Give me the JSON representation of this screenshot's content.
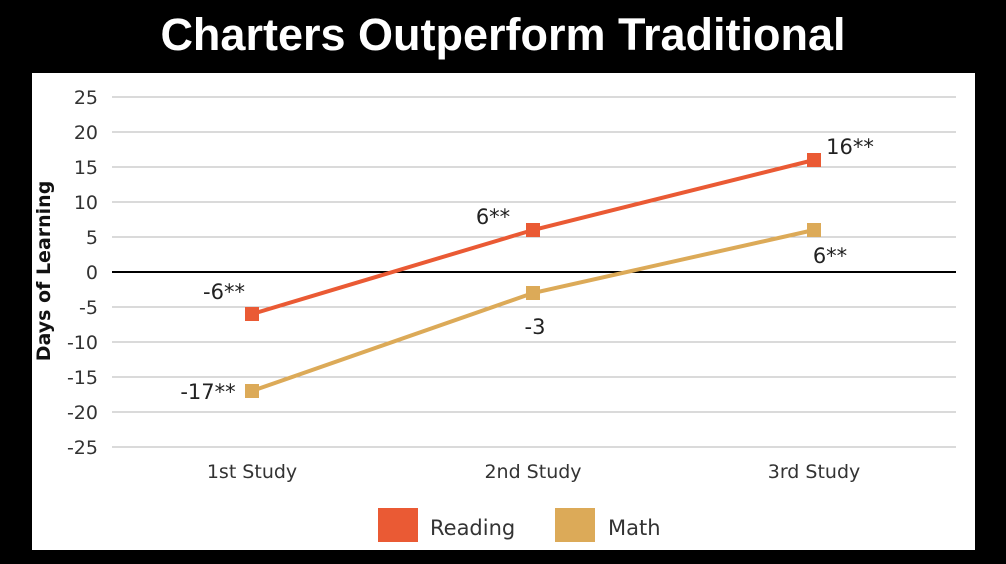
{
  "title": "Charters Outperform Traditional",
  "colors": {
    "Reading": "#ea5a34",
    "Math": "#dcaa58",
    "background": "#000000",
    "panel": "#ffffff"
  },
  "chart_data": {
    "type": "line",
    "categories": [
      "1st Study",
      "2nd Study",
      "3rd Study"
    ],
    "series": [
      {
        "name": "Reading",
        "values": [
          -6,
          6,
          16
        ],
        "labels": [
          "-6**",
          "6**",
          "16**"
        ]
      },
      {
        "name": "Math",
        "values": [
          -17,
          -3,
          6
        ],
        "labels": [
          "-17**",
          "-3",
          "6**"
        ]
      }
    ],
    "ylabel": "Days of Learning",
    "xlabel": "",
    "ylim": [
      -25,
      25
    ],
    "yticks": [
      25,
      20,
      15,
      10,
      5,
      0,
      -5,
      -10,
      -15,
      -20,
      -25
    ],
    "grid": true,
    "legend": "bottom"
  }
}
